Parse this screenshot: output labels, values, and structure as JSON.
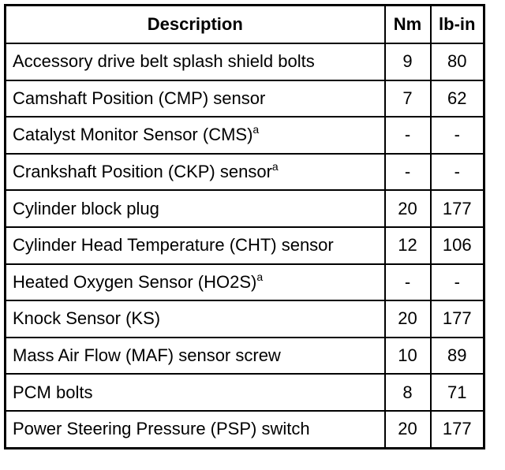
{
  "table": {
    "header": [
      "Description",
      "Nm",
      "lb-in"
    ],
    "rows": [
      {
        "description": "Accessory drive belt splash shield bolts",
        "nm": 9,
        "lb_in": 80
      },
      {
        "description": "Camshaft Position (CMP) sensor",
        "nm": 7,
        "lb_in": 62
      },
      {
        "description": "Catalyst Monitor Sensor (CMS)",
        "note": "a",
        "nm": "-",
        "lb_in": "-"
      },
      {
        "description": "Crankshaft Position (CKP) sensor",
        "note": "a",
        "nm": "-",
        "lb_in": "-"
      },
      {
        "description": "Cylinder block plug",
        "nm": 20,
        "lb_in": 177
      },
      {
        "description": "Cylinder Head Temperature (CHT) sensor",
        "nm": 12,
        "lb_in": 106
      },
      {
        "description": "Heated Oxygen Sensor (HO2S)",
        "note": "a",
        "nm": "-",
        "lb_in": "-"
      },
      {
        "description": "Knock Sensor (KS)",
        "nm": 20,
        "lb_in": 177
      },
      {
        "description": "Mass Air Flow (MAF) sensor screw",
        "nm": 10,
        "lb_in": 89
      },
      {
        "description": "PCM bolts",
        "nm": 8,
        "lb_in": 71
      },
      {
        "description": "Power Steering Pressure (PSP) switch",
        "nm": 20,
        "lb_in": 177
      }
    ]
  }
}
